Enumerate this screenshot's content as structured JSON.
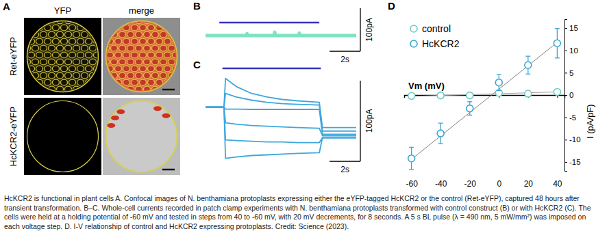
{
  "figure": {
    "panel_a": {
      "label": "A",
      "columns": [
        "YFP",
        "merge"
      ],
      "rows": [
        "Ret-eYFP",
        "HcKCR2-eYFP"
      ]
    },
    "caption": "HcKCR2 is functional in plant cells A. Confocal images of N. benthamiana protoplasts expressing either the eYFP-tagged HcKCR2 or the control (Ret-eYFP), captured 48 hours after transient transformation. B–C. Whole-cell currents recorded in patch clamp experiments with N. benthamiana protoplasts transformed with control construct (B) or with HcKCR2 (C). The cells were held at a holding potential of -60 mV and tested in steps from 40 to -60 mV, with 20 mV decrements, for 8 seconds. A 5 s BL pulse (λ = 490 nm, 5 mW/mm²) was imposed on each voltage step. D. I-V relationship of control and HcKCR2 expressing protoplasts. Credit: Science (2023)."
  },
  "chart_data": [
    {
      "label": "B",
      "type": "line",
      "tick_labels": false,
      "x": [
        0,
        2.65,
        2.7,
        2.75,
        4.45,
        4.5,
        4.55,
        6.05,
        6.1,
        6.15,
        9.8
      ],
      "series": [
        {
          "color": "#7ee3c1",
          "values": [
            0,
            0,
            8,
            0,
            0,
            14,
            0,
            0,
            10,
            0,
            0
          ]
        }
      ],
      "xlim": [
        0,
        9.8
      ],
      "ylim": [
        -80,
        80
      ],
      "light_pulse": {
        "x": [
          0.9,
          7.4
        ],
        "color": "#3434b8"
      },
      "scale_bar": {
        "x": 2,
        "x_label": "2s",
        "y": 100,
        "y_label": "100pA"
      }
    },
    {
      "label": "C",
      "type": "line",
      "tick_labels": false,
      "x": [
        0,
        1.2,
        1.3,
        2,
        3,
        4,
        5,
        6,
        7.4,
        7.6,
        9.8
      ],
      "series": [
        {
          "color": "#3da8dc",
          "values": [
            0,
            0,
            124,
            89,
            59,
            44,
            33,
            27,
            21,
            -89,
            -89
          ]
        },
        {
          "color": "#3da8dc",
          "values": [
            0,
            0,
            59,
            44,
            30,
            21,
            15,
            12,
            9,
            -104,
            -104
          ]
        },
        {
          "color": "#3da8dc",
          "values": [
            0,
            0,
            -9,
            -9,
            -10,
            -10,
            -10,
            -10,
            -10,
            -118,
            -118
          ]
        },
        {
          "color": "#3da8dc",
          "values": [
            0,
            0,
            -68,
            -74,
            -80,
            -83,
            -86,
            -89,
            -92,
            -124,
            -124
          ]
        },
        {
          "color": "#3da8dc",
          "values": [
            0,
            0,
            -142,
            -145,
            -148,
            -151,
            -151,
            -154,
            -154,
            -133,
            -133
          ]
        },
        {
          "color": "#3da8dc",
          "values": [
            0,
            0,
            -222,
            -216,
            -210,
            -207,
            -204,
            -201,
            -198,
            -133,
            -133
          ]
        }
      ],
      "xlim": [
        0,
        9.8
      ],
      "ylim": [
        -250,
        150
      ],
      "light_pulse": {
        "x": [
          1.1,
          7.5
        ],
        "color": "#3434b8"
      },
      "scale_bar": {
        "x": 2,
        "x_label": "2s",
        "y": 100,
        "y_label": "100pA"
      }
    },
    {
      "label": "D",
      "type": "scatter",
      "marker": "circle-open",
      "legend": "upper-left",
      "x_label": "Vm (mV)",
      "y_label": "I (pA/pF)",
      "x": [
        -60,
        -40,
        -20,
        0,
        20,
        40
      ],
      "series": [
        {
          "name": "control",
          "color": "#6cccc4",
          "values": [
            -0.2,
            -0.1,
            -0.1,
            0.5,
            0.3,
            0.7
          ]
        },
        {
          "name": "HcKCR2",
          "color": "#3aa6d6",
          "values": [
            -14.2,
            -8.6,
            -3.0,
            2.8,
            6.7,
            11.6
          ],
          "errors": [
            2.5,
            2.3,
            1.5,
            1.8,
            2.0,
            3.3
          ]
        }
      ],
      "fit_lines": [
        {
          "x": [
            -60,
            40
          ],
          "values": [
            -14.4,
            11.8
          ],
          "color": "#808080"
        },
        {
          "x": [
            -60,
            40
          ],
          "values": [
            -0.3,
            0.7
          ],
          "color": "#a0a0a0"
        }
      ],
      "xlim": [
        -65,
        45
      ],
      "ylim": [
        -17,
        17
      ],
      "xticks": [
        -60,
        -40,
        -20,
        0,
        20,
        40
      ],
      "yticks": [
        -15,
        -10,
        -5,
        0,
        5,
        10,
        15
      ]
    }
  ]
}
